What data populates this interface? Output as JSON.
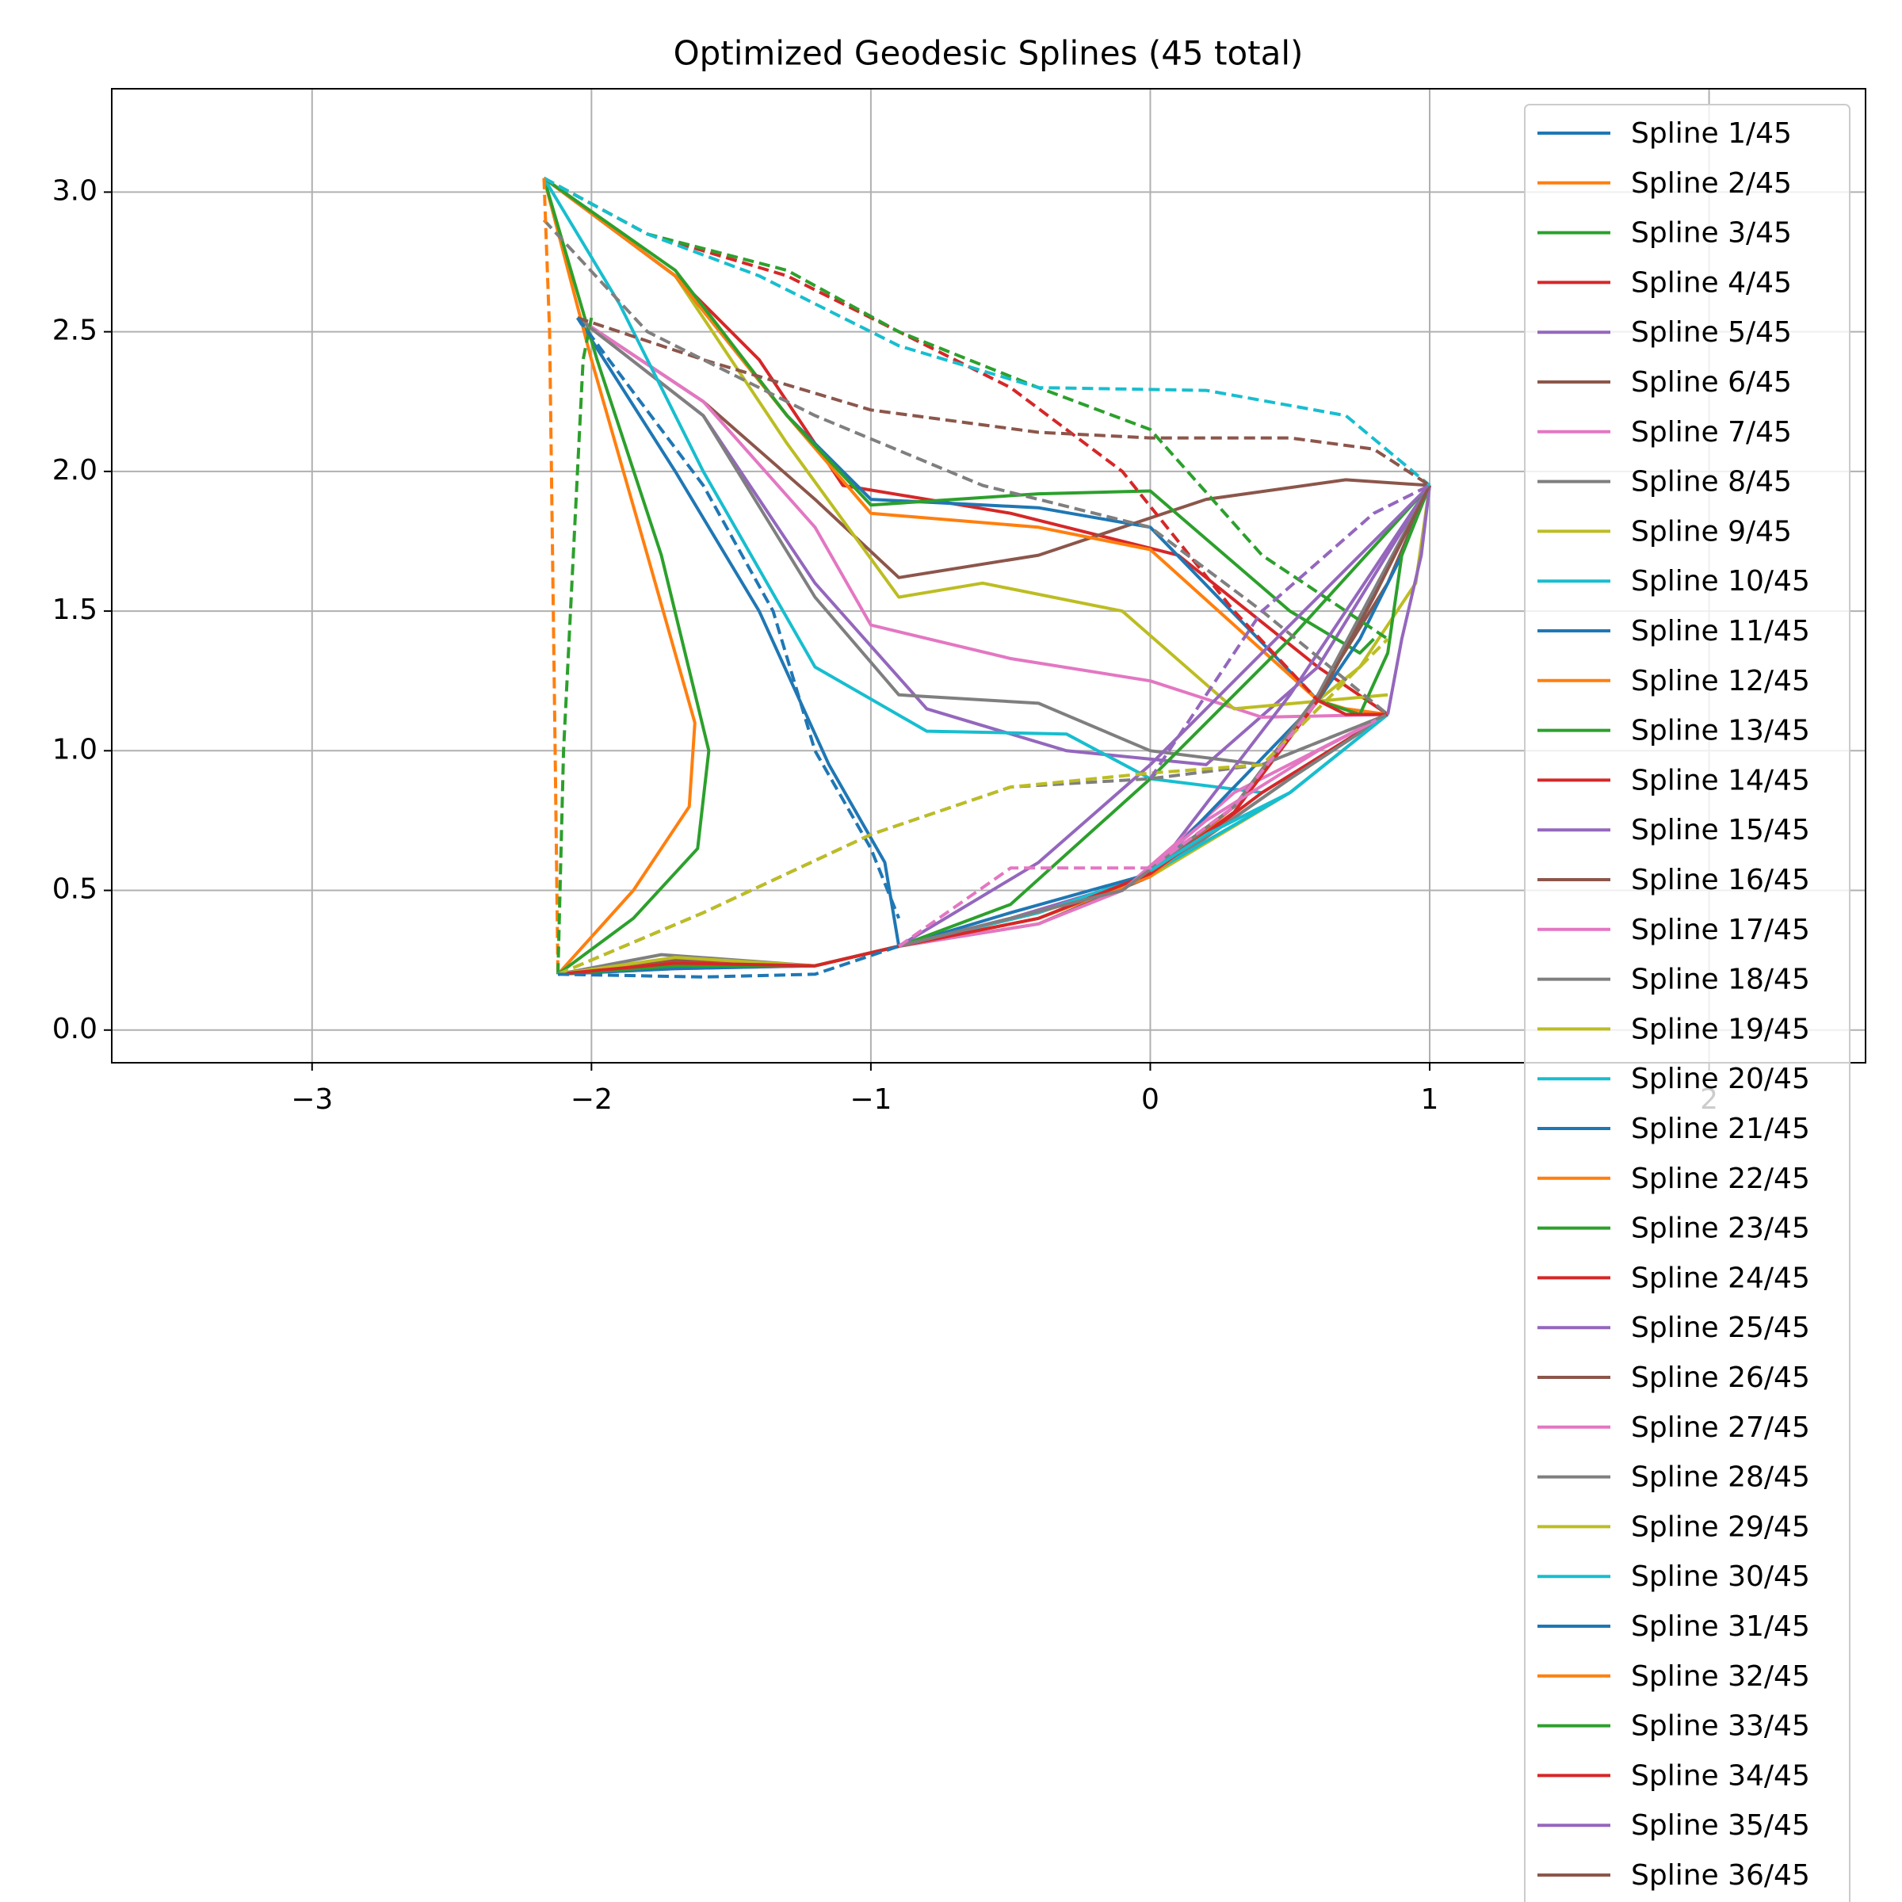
{
  "chart_data": {
    "type": "line",
    "title": "Optimized Geodesic Splines (45 total)",
    "xlim": [
      -3.717,
      2.56
    ],
    "ylim": [
      -0.117,
      3.37
    ],
    "xticks": [
      {
        "value": -3,
        "label": "−3"
      },
      {
        "value": -2,
        "label": "−2"
      },
      {
        "value": -1,
        "label": "−1"
      },
      0,
      1,
      2
    ],
    "yticks": [
      {
        "value": 0,
        "label": "0.0"
      },
      0.5,
      {
        "value": 1,
        "label": "1.0"
      },
      1.5,
      {
        "value": 2,
        "label": "2.0"
      },
      2.5,
      {
        "value": 3,
        "label": "3.0"
      }
    ],
    "grid": true,
    "legend": "upper right",
    "series": [
      {
        "name": "Spline 1/45",
        "color": "#1f77b4",
        "x": [
          -2.05,
          -1.7,
          -1.4,
          -1.15,
          -0.95,
          -0.9
        ],
        "values": [
          2.55,
          2.0,
          1.5,
          0.95,
          0.6,
          0.3
        ]
      },
      {
        "name": "Spline 2/45",
        "color": "#ff7f0e",
        "x": [
          -2.17,
          -2.0,
          -1.8,
          -1.63,
          -1.65,
          -1.85,
          -2.12
        ],
        "values": [
          3.05,
          2.4,
          1.7,
          1.1,
          0.8,
          0.5,
          0.2
        ]
      },
      {
        "name": "Spline 3/45",
        "color": "#2ca02c",
        "x": [
          -2.17,
          -1.98,
          -1.75,
          -1.58,
          -1.62,
          -1.85,
          -2.12
        ],
        "values": [
          3.05,
          2.4,
          1.7,
          1.0,
          0.65,
          0.4,
          0.2
        ]
      },
      {
        "name": "Spline 4/45",
        "color": "#d62728",
        "x": [
          -2.17,
          -1.7,
          -1.4,
          -1.1,
          -0.5,
          0.1,
          0.6,
          0.85
        ],
        "values": [
          3.05,
          2.7,
          2.4,
          1.95,
          1.85,
          1.7,
          1.3,
          1.13
        ]
      },
      {
        "name": "Spline 5/45",
        "color": "#9467bd",
        "x": [
          -2.05,
          -1.6,
          -1.2,
          -0.8,
          -0.3,
          0.2,
          0.6,
          1.0
        ],
        "values": [
          2.55,
          2.2,
          1.6,
          1.15,
          1.0,
          0.95,
          1.3,
          1.95
        ]
      },
      {
        "name": "Spline 6/45",
        "color": "#8c564b",
        "x": [
          -2.05,
          -1.6,
          -1.2,
          -0.9,
          -0.4,
          0.2,
          0.7,
          1.0
        ],
        "values": [
          2.55,
          2.25,
          1.9,
          1.62,
          1.7,
          1.9,
          1.97,
          1.95
        ]
      },
      {
        "name": "Spline 7/45",
        "color": "#e377c2",
        "x": [
          -2.05,
          -1.6,
          -1.2,
          -1.0,
          -0.5,
          0.0,
          0.4,
          0.85
        ],
        "values": [
          2.55,
          2.25,
          1.8,
          1.45,
          1.33,
          1.25,
          1.12,
          1.13
        ]
      },
      {
        "name": "Spline 8/45",
        "color": "#7f7f7f",
        "x": [
          -2.05,
          -1.6,
          -1.2,
          -0.9,
          -0.4,
          0.0,
          0.4,
          0.85
        ],
        "values": [
          2.55,
          2.2,
          1.55,
          1.2,
          1.17,
          1.0,
          0.95,
          1.13
        ]
      },
      {
        "name": "Spline 9/45",
        "color": "#bcbd22",
        "x": [
          -2.17,
          -1.7,
          -1.3,
          -0.9,
          -0.6,
          -0.1,
          0.3,
          0.85
        ],
        "values": [
          3.05,
          2.7,
          2.1,
          1.55,
          1.6,
          1.5,
          1.15,
          1.2
        ]
      },
      {
        "name": "Spline 10/45",
        "color": "#17becf",
        "x": [
          -2.17,
          -1.9,
          -1.6,
          -1.2,
          -0.8,
          -0.3,
          0.0,
          0.4,
          0.85
        ],
        "values": [
          3.05,
          2.6,
          2.0,
          1.3,
          1.07,
          1.06,
          0.9,
          0.85,
          1.13
        ]
      },
      {
        "name": "Spline 11/45",
        "color": "#1f77b4",
        "x": [
          -2.17,
          -1.7,
          -1.3,
          -1.0,
          -0.4,
          0.0,
          0.6
        ],
        "values": [
          3.05,
          2.7,
          2.2,
          1.9,
          1.87,
          1.8,
          1.18
        ]
      },
      {
        "name": "Spline 12/45",
        "color": "#ff7f0e",
        "x": [
          -2.17,
          -1.7,
          -1.3,
          -1.0,
          -0.4,
          0.0,
          0.6
        ],
        "values": [
          3.05,
          2.7,
          2.2,
          1.85,
          1.8,
          1.72,
          1.18
        ]
      },
      {
        "name": "Spline 13/45",
        "color": "#2ca02c",
        "x": [
          -2.17,
          -1.7,
          -1.3,
          -1.0,
          -0.4,
          0.0,
          0.5,
          0.75,
          0.8
        ],
        "values": [
          3.05,
          2.72,
          2.2,
          1.88,
          1.92,
          1.93,
          1.5,
          1.35,
          1.4
        ]
      },
      {
        "name": "Spline 14/45",
        "color": "#d62728",
        "x": [
          -2.12,
          -1.7,
          -1.2,
          -0.9,
          -0.5,
          0.0,
          0.4,
          0.85
        ],
        "values": [
          0.2,
          0.24,
          0.23,
          0.3,
          0.4,
          0.55,
          0.85,
          1.13
        ]
      },
      {
        "name": "Spline 15/45",
        "color": "#9467bd",
        "x": [
          -2.12,
          -1.7,
          -1.2,
          -0.9,
          -0.5,
          0.0,
          0.5,
          1.0
        ],
        "values": [
          0.2,
          0.23,
          0.23,
          0.3,
          0.4,
          0.55,
          1.2,
          1.95
        ]
      },
      {
        "name": "Spline 16/45",
        "color": "#8c564b",
        "x": [
          -2.12,
          -1.7,
          -1.2,
          -0.9,
          -0.4,
          0.0,
          0.5,
          0.85
        ],
        "values": [
          0.2,
          0.25,
          0.23,
          0.3,
          0.38,
          0.55,
          0.9,
          1.13
        ]
      },
      {
        "name": "Spline 17/45",
        "color": "#e377c2",
        "x": [
          -2.12,
          -1.7,
          -1.2,
          -0.9,
          -0.4,
          -0.1,
          0.3,
          0.85
        ],
        "values": [
          0.2,
          0.22,
          0.23,
          0.3,
          0.38,
          0.5,
          0.85,
          1.13
        ]
      },
      {
        "name": "Spline 18/45",
        "color": "#7f7f7f",
        "x": [
          -2.12,
          -1.75,
          -1.2,
          -0.9,
          -0.4,
          0.0,
          0.5,
          0.85
        ],
        "values": [
          0.2,
          0.27,
          0.23,
          0.3,
          0.4,
          0.55,
          0.9,
          1.13
        ]
      },
      {
        "name": "Spline 19/45",
        "color": "#bcbd22",
        "x": [
          -2.12,
          -1.7,
          -1.2,
          -0.9,
          -0.4,
          0.0,
          0.5,
          0.85
        ],
        "values": [
          0.2,
          0.26,
          0.23,
          0.3,
          0.42,
          0.55,
          0.85,
          1.13
        ]
      },
      {
        "name": "Spline 20/45",
        "color": "#17becf",
        "x": [
          -2.12,
          -1.7,
          -1.2,
          -0.9,
          -0.4,
          0.0,
          0.5,
          0.85
        ],
        "values": [
          0.2,
          0.24,
          0.23,
          0.3,
          0.42,
          0.56,
          0.85,
          1.13
        ]
      },
      {
        "name": "Spline 21/45",
        "color": "#1f77b4",
        "x": [
          -2.12,
          -1.7,
          -1.2,
          -0.9,
          -0.5,
          0.0,
          0.6,
          1.0
        ],
        "values": [
          0.2,
          0.22,
          0.23,
          0.3,
          0.42,
          0.56,
          1.18,
          1.95
        ]
      },
      {
        "name": "Spline 22/45",
        "color": "#ff7f0e",
        "x": [
          -2.12,
          -1.7,
          -1.2,
          -0.9,
          -0.4,
          0.0,
          0.3,
          0.6
        ],
        "values": [
          0.2,
          0.24,
          0.23,
          0.3,
          0.4,
          0.55,
          0.8,
          1.18
        ]
      },
      {
        "name": "Spline 23/45",
        "color": "#2ca02c",
        "x": [
          -2.12,
          -1.7,
          -1.2,
          -0.9,
          -0.5,
          0.0,
          0.5,
          1.0
        ],
        "values": [
          0.2,
          0.23,
          0.23,
          0.3,
          0.45,
          0.9,
          1.4,
          1.95
        ]
      },
      {
        "name": "Spline 24/45",
        "color": "#d62728",
        "x": [
          -2.12,
          -1.7,
          -1.2,
          -0.9,
          -0.4,
          0.0,
          0.3,
          0.6
        ],
        "values": [
          0.2,
          0.24,
          0.23,
          0.3,
          0.4,
          0.56,
          0.78,
          1.18
        ]
      },
      {
        "name": "Spline 25/45",
        "color": "#9467bd",
        "x": [
          -0.9,
          -0.4,
          0.0,
          0.5,
          1.0
        ],
        "values": [
          0.3,
          0.6,
          0.95,
          1.45,
          1.95
        ]
      },
      {
        "name": "Spline 26/45",
        "color": "#8c564b",
        "x": [
          0,
          0.3,
          0.6,
          0.85,
          1.0
        ],
        "values": [
          0.57,
          0.8,
          1.2,
          1.6,
          1.95
        ]
      },
      {
        "name": "Spline 27/45",
        "color": "#e377c2",
        "x": [
          -0.9,
          -0.5,
          -0.1,
          0.2,
          0.6,
          0.85
        ],
        "values": [
          0.3,
          0.4,
          0.5,
          0.75,
          1.0,
          1.13
        ]
      },
      {
        "name": "Spline 28/45",
        "color": "#7f7f7f",
        "x": [
          -0.9,
          -0.5,
          -0.1,
          0.3,
          0.6,
          1.0
        ],
        "values": [
          0.3,
          0.4,
          0.5,
          0.8,
          1.2,
          1.95
        ]
      },
      {
        "name": "Spline 29/45",
        "color": "#bcbd22",
        "x": [
          0.6,
          0.75,
          0.85,
          0.95,
          1.0
        ],
        "values": [
          1.18,
          1.3,
          1.45,
          1.6,
          1.95
        ]
      },
      {
        "name": "Spline 30/45",
        "color": "#17becf",
        "x": [
          0,
          0.2,
          0.5,
          0.85
        ],
        "values": [
          0.57,
          0.7,
          0.85,
          1.13
        ]
      },
      {
        "name": "Spline 31/45",
        "color": "#1f77b4",
        "x": [
          0.6,
          0.75,
          0.9,
          1.0
        ],
        "values": [
          1.18,
          1.4,
          1.7,
          1.95
        ]
      },
      {
        "name": "Spline 32/45",
        "color": "#ff7f0e",
        "x": [
          0.6,
          0.7,
          0.85
        ],
        "values": [
          1.18,
          1.15,
          1.13
        ]
      },
      {
        "name": "Spline 33/45",
        "color": "#2ca02c",
        "x": [
          0.6,
          0.75,
          0.85,
          0.9,
          1.0
        ],
        "values": [
          1.18,
          1.13,
          1.35,
          1.7,
          1.95
        ]
      },
      {
        "name": "Spline 34/45",
        "color": "#d62728",
        "x": [
          0.6,
          0.7,
          0.85
        ],
        "values": [
          1.18,
          1.13,
          1.13
        ]
      },
      {
        "name": "Spline 35/45",
        "color": "#9467bd",
        "x": [
          0.85,
          0.9,
          0.97,
          1.0
        ],
        "values": [
          1.13,
          1.4,
          1.7,
          1.95
        ]
      },
      {
        "name": "Spline 36/45",
        "color": "#8c564b",
        "x": [
          0.6,
          0.8,
          1.0
        ],
        "values": [
          1.18,
          1.55,
          1.95
        ]
      },
      {
        "color": "#d62728",
        "dashed": true,
        "x": [
          -2.17,
          -1.8,
          -1.3,
          -0.9,
          -0.5,
          -0.1,
          0.3,
          0.6
        ],
        "values": [
          3.05,
          2.85,
          2.7,
          2.5,
          2.3,
          2.0,
          1.5,
          1.18
        ]
      },
      {
        "color": "#2ca02c",
        "dashed": true,
        "x": [
          -2.17,
          -1.8,
          -1.3,
          -0.9,
          -0.4,
          0.0,
          0.4,
          0.85
        ],
        "values": [
          3.05,
          2.85,
          2.72,
          2.5,
          2.3,
          2.15,
          1.7,
          1.4
        ]
      },
      {
        "color": "#17becf",
        "dashed": true,
        "x": [
          -2.17,
          -1.8,
          -1.4,
          -0.9,
          -0.4,
          0.2,
          0.7,
          1.0
        ],
        "values": [
          3.05,
          2.85,
          2.7,
          2.45,
          2.3,
          2.29,
          2.2,
          1.95
        ]
      },
      {
        "color": "#8c564b",
        "dashed": true,
        "x": [
          -2.05,
          -1.6,
          -1.0,
          -0.4,
          0.0,
          0.5,
          0.8,
          1.0
        ],
        "values": [
          2.55,
          2.4,
          2.22,
          2.14,
          2.12,
          2.12,
          2.08,
          1.95
        ]
      },
      {
        "color": "#7f7f7f",
        "dashed": true,
        "x": [
          -2.17,
          -1.8,
          -1.2,
          -0.6,
          0,
          0.4,
          0.85
        ],
        "values": [
          2.9,
          2.5,
          2.2,
          1.95,
          1.8,
          1.5,
          1.13
        ]
      },
      {
        "color": "#ff7f0e",
        "dashed": true,
        "x": [
          -2.17,
          -2.15,
          -2.13,
          -2.12
        ],
        "values": [
          3.05,
          2.5,
          1.0,
          0.2
        ]
      },
      {
        "color": "#2ca02c",
        "dashed": true,
        "x": [
          -2.12,
          -2.1,
          -2.05,
          -2.03,
          -2.0
        ],
        "values": [
          0.2,
          1.0,
          2.0,
          2.4,
          2.55
        ]
      },
      {
        "color": "#1f77b4",
        "dashed": true,
        "x": [
          -2.05,
          -1.6,
          -1.35,
          -1.2,
          -1.0,
          -0.9
        ],
        "values": [
          2.55,
          1.95,
          1.5,
          1.0,
          0.65,
          0.4
        ]
      },
      {
        "color": "#7f7f7f",
        "dashed": true,
        "x": [
          -2.12,
          -1.6,
          -1.0,
          -0.5,
          0.0,
          0.4,
          0.85
        ],
        "values": [
          0.2,
          0.42,
          0.7,
          0.87,
          0.9,
          0.95,
          1.13
        ]
      },
      {
        "color": "#bcbd22",
        "dashed": true,
        "x": [
          -2.12,
          -1.6,
          -1.0,
          -0.5,
          0.0,
          0.4,
          0.85
        ],
        "values": [
          0.2,
          0.42,
          0.7,
          0.87,
          0.92,
          0.95,
          1.4
        ]
      },
      {
        "color": "#1f77b4",
        "dashed": true,
        "x": [
          -2.12,
          -1.6,
          -1.2,
          -0.9
        ],
        "values": [
          0.2,
          0.19,
          0.2,
          0.3
        ]
      },
      {
        "color": "#e377c2",
        "dashed": true,
        "x": [
          -0.9,
          -0.5,
          0.0,
          0.3,
          0.6
        ],
        "values": [
          0.3,
          0.58,
          0.58,
          0.8,
          1.18
        ]
      },
      {
        "color": "#9467bd",
        "dashed": true,
        "x": [
          0,
          0.4,
          0.8,
          1.0
        ],
        "values": [
          0.9,
          1.5,
          1.85,
          1.95
        ]
      }
    ]
  }
}
